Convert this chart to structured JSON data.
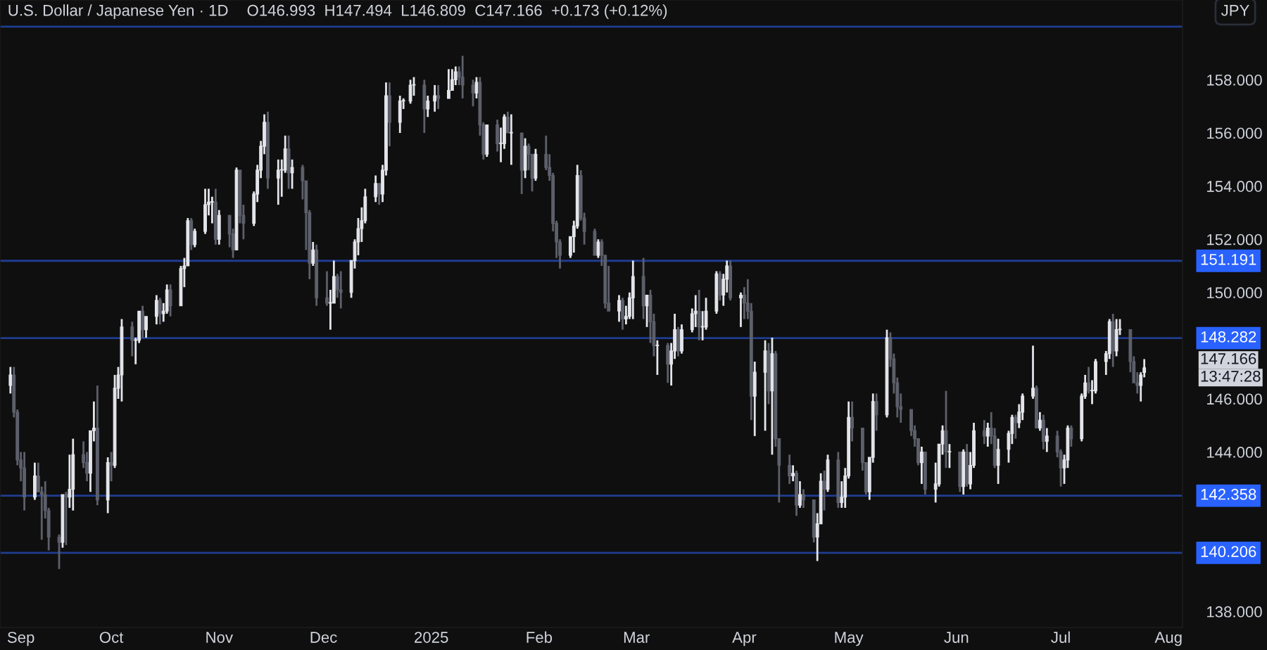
{
  "chart_data": {
    "type": "candlestick",
    "title": "U.S. Dollar / Japanese Yen · 1D",
    "subtitle": "O146.993  H147.494  L146.809  C147.166  +0.173 (+0.12%)",
    "x": [
      "2024-09-02",
      "2024-09-03",
      "2024-09-04",
      "2024-09-05",
      "2024-09-06",
      "2024-09-09",
      "2024-09-10",
      "2024-09-11",
      "2024-09-12",
      "2024-09-13",
      "2024-09-16",
      "2024-09-17",
      "2024-09-18",
      "2024-09-19",
      "2024-09-20",
      "2024-09-23",
      "2024-09-24",
      "2024-09-25",
      "2024-09-26",
      "2024-09-27",
      "2024-09-30",
      "2024-10-01",
      "2024-10-02",
      "2024-10-03",
      "2024-10-04",
      "2024-10-07",
      "2024-10-08",
      "2024-10-09",
      "2024-10-10",
      "2024-10-11",
      "2024-10-14",
      "2024-10-15",
      "2024-10-16",
      "2024-10-17",
      "2024-10-18",
      "2024-10-21",
      "2024-10-22",
      "2024-10-23",
      "2024-10-24",
      "2024-10-25",
      "2024-10-28",
      "2024-10-29",
      "2024-10-30",
      "2024-10-31",
      "2024-11-01",
      "2024-11-04",
      "2024-11-05",
      "2024-11-06",
      "2024-11-07",
      "2024-11-08",
      "2024-11-11",
      "2024-11-12",
      "2024-11-13",
      "2024-11-14",
      "2024-11-15",
      "2024-11-18",
      "2024-11-19",
      "2024-11-20",
      "2024-11-21",
      "2024-11-22",
      "2024-11-25",
      "2024-11-26",
      "2024-11-27",
      "2024-11-28",
      "2024-11-29",
      "2024-12-02",
      "2024-12-03",
      "2024-12-04",
      "2024-12-05",
      "2024-12-06",
      "2024-12-09",
      "2024-12-10",
      "2024-12-11",
      "2024-12-12",
      "2024-12-13",
      "2024-12-16",
      "2024-12-17",
      "2024-12-18",
      "2024-12-19",
      "2024-12-20",
      "2024-12-23",
      "2024-12-24",
      "2024-12-26",
      "2024-12-27",
      "2024-12-30",
      "2024-12-31",
      "2025-01-02",
      "2025-01-03",
      "2025-01-06",
      "2025-01-07",
      "2025-01-08",
      "2025-01-09",
      "2025-01-10",
      "2025-01-13",
      "2025-01-14",
      "2025-01-15",
      "2025-01-16",
      "2025-01-17",
      "2025-01-20",
      "2025-01-21",
      "2025-01-22",
      "2025-01-23",
      "2025-01-24",
      "2025-01-27",
      "2025-01-28",
      "2025-01-29",
      "2025-01-30",
      "2025-01-31",
      "2025-02-03",
      "2025-02-04",
      "2025-02-05",
      "2025-02-06",
      "2025-02-07",
      "2025-02-10",
      "2025-02-11",
      "2025-02-12",
      "2025-02-13",
      "2025-02-14",
      "2025-02-17",
      "2025-02-18",
      "2025-02-19",
      "2025-02-20",
      "2025-02-21",
      "2025-02-24",
      "2025-02-25",
      "2025-02-26",
      "2025-02-27",
      "2025-02-28",
      "2025-03-03",
      "2025-03-04",
      "2025-03-05",
      "2025-03-06",
      "2025-03-07",
      "2025-03-10",
      "2025-03-11",
      "2025-03-12",
      "2025-03-13",
      "2025-03-14",
      "2025-03-17",
      "2025-03-18",
      "2025-03-19",
      "2025-03-20",
      "2025-03-21",
      "2025-03-24",
      "2025-03-25",
      "2025-03-26",
      "2025-03-27",
      "2025-03-28",
      "2025-03-31",
      "2025-04-01",
      "2025-04-02",
      "2025-04-03",
      "2025-04-04",
      "2025-04-07",
      "2025-04-08",
      "2025-04-09",
      "2025-04-10",
      "2025-04-11",
      "2025-04-14",
      "2025-04-15",
      "2025-04-16",
      "2025-04-17",
      "2025-04-18",
      "2025-04-21",
      "2025-04-22",
      "2025-04-23",
      "2025-04-24",
      "2025-04-25",
      "2025-04-28",
      "2025-04-29",
      "2025-04-30",
      "2025-05-01",
      "2025-05-02",
      "2025-05-05",
      "2025-05-06",
      "2025-05-07",
      "2025-05-08",
      "2025-05-09",
      "2025-05-12",
      "2025-05-13",
      "2025-05-14",
      "2025-05-15",
      "2025-05-16",
      "2025-05-19",
      "2025-05-20",
      "2025-05-21",
      "2025-05-22",
      "2025-05-23",
      "2025-05-26",
      "2025-05-27",
      "2025-05-28",
      "2025-05-29",
      "2025-05-30",
      "2025-06-02",
      "2025-06-03",
      "2025-06-04",
      "2025-06-05",
      "2025-06-06",
      "2025-06-09",
      "2025-06-10",
      "2025-06-11",
      "2025-06-12",
      "2025-06-13",
      "2025-06-16",
      "2025-06-17",
      "2025-06-18",
      "2025-06-19",
      "2025-06-20",
      "2025-06-23",
      "2025-06-24",
      "2025-06-25",
      "2025-06-26",
      "2025-06-27",
      "2025-06-30",
      "2025-07-01",
      "2025-07-02",
      "2025-07-03",
      "2025-07-04",
      "2025-07-07",
      "2025-07-08",
      "2025-07-09",
      "2025-07-10",
      "2025-07-11",
      "2025-07-14",
      "2025-07-15",
      "2025-07-16",
      "2025-07-17",
      "2025-07-18",
      "2025-07-21",
      "2025-07-22",
      "2025-07-23",
      "2025-07-24",
      "2025-07-25"
    ],
    "ohlc": [
      [
        146.5,
        147.2,
        146.2,
        146.9
      ],
      [
        146.9,
        147.2,
        145.3,
        145.5
      ],
      [
        145.5,
        145.6,
        143.5,
        143.7
      ],
      [
        143.7,
        144.0,
        142.9,
        143.4
      ],
      [
        143.4,
        144.0,
        141.8,
        142.3
      ],
      [
        142.3,
        143.6,
        142.2,
        143.1
      ],
      [
        143.1,
        143.6,
        142.5,
        142.5
      ],
      [
        142.5,
        142.7,
        140.7,
        142.4
      ],
      [
        142.4,
        142.9,
        141.5,
        141.8
      ],
      [
        141.8,
        141.9,
        140.3,
        140.8
      ],
      [
        140.8,
        140.9,
        139.6,
        140.6
      ],
      [
        140.6,
        142.4,
        140.4,
        142.4
      ],
      [
        142.4,
        142.5,
        140.5,
        142.3
      ],
      [
        142.3,
        143.9,
        141.9,
        142.6
      ],
      [
        142.6,
        144.5,
        141.8,
        143.9
      ],
      [
        143.9,
        144.4,
        143.4,
        143.6
      ],
      [
        143.6,
        144.0,
        142.9,
        143.2
      ],
      [
        143.2,
        144.8,
        142.5,
        144.8
      ],
      [
        144.8,
        145.9,
        144.4,
        144.9
      ],
      [
        144.9,
        146.5,
        142.0,
        142.2
      ],
      [
        142.2,
        143.8,
        141.7,
        143.6
      ],
      [
        143.6,
        144.0,
        142.9,
        143.5
      ],
      [
        143.5,
        146.9,
        143.4,
        146.4
      ],
      [
        146.4,
        147.2,
        146.0,
        146.9
      ],
      [
        146.9,
        149.0,
        145.9,
        148.7
      ],
      [
        148.7,
        148.9,
        147.6,
        148.2
      ],
      [
        148.2,
        148.3,
        147.3,
        148.2
      ],
      [
        148.2,
        149.3,
        148.1,
        149.3
      ],
      [
        149.3,
        149.5,
        148.3,
        148.6
      ],
      [
        148.6,
        149.1,
        148.3,
        149.1
      ],
      [
        149.1,
        149.9,
        148.8,
        149.7
      ],
      [
        149.7,
        149.8,
        148.8,
        149.2
      ],
      [
        149.2,
        149.6,
        148.9,
        149.3
      ],
      [
        149.3,
        150.3,
        149.2,
        150.1
      ],
      [
        150.1,
        150.3,
        149.1,
        149.5
      ],
      [
        149.5,
        151.0,
        149.5,
        150.9
      ],
      [
        150.9,
        151.3,
        150.2,
        151.0
      ],
      [
        151.0,
        152.8,
        151.0,
        152.7
      ],
      [
        152.7,
        152.8,
        151.6,
        151.8
      ],
      [
        151.8,
        152.4,
        151.7,
        152.3
      ],
      [
        152.3,
        153.9,
        152.2,
        153.3
      ],
      [
        153.3,
        153.9,
        152.9,
        153.4
      ],
      [
        153.4,
        153.6,
        152.6,
        153.4
      ],
      [
        153.4,
        153.9,
        151.8,
        152.0
      ],
      [
        152.0,
        153.1,
        151.8,
        152.9
      ],
      [
        152.9,
        152.9,
        151.7,
        152.2
      ],
      [
        152.2,
        152.4,
        151.3,
        151.6
      ],
      [
        151.6,
        154.7,
        151.6,
        154.6
      ],
      [
        154.6,
        154.6,
        152.6,
        152.9
      ],
      [
        152.9,
        153.3,
        152.0,
        152.6
      ],
      [
        152.6,
        153.8,
        152.5,
        153.7
      ],
      [
        153.7,
        154.8,
        153.4,
        154.6
      ],
      [
        154.6,
        155.7,
        154.3,
        155.5
      ],
      [
        155.5,
        156.7,
        155.2,
        156.4
      ],
      [
        156.4,
        156.8,
        153.9,
        154.3
      ],
      [
        154.3,
        155.0,
        153.3,
        154.6
      ],
      [
        154.6,
        155.0,
        153.6,
        154.6
      ],
      [
        154.6,
        155.9,
        154.5,
        155.4
      ],
      [
        155.4,
        155.9,
        153.9,
        154.5
      ],
      [
        154.5,
        155.0,
        153.9,
        154.7
      ],
      [
        154.7,
        154.8,
        153.5,
        154.2
      ],
      [
        154.2,
        154.2,
        151.6,
        153.0
      ],
      [
        153.0,
        153.1,
        150.5,
        151.1
      ],
      [
        151.1,
        151.9,
        151.0,
        151.6
      ],
      [
        151.6,
        151.8,
        149.5,
        149.8
      ],
      [
        149.8,
        150.8,
        149.5,
        149.6
      ],
      [
        149.6,
        150.1,
        148.6,
        149.6
      ],
      [
        149.6,
        151.2,
        149.6,
        150.6
      ],
      [
        150.6,
        150.7,
        149.8,
        150.1
      ],
      [
        150.1,
        150.8,
        149.4,
        150.0
      ],
      [
        150.0,
        151.2,
        149.8,
        151.2
      ],
      [
        151.2,
        152.0,
        150.9,
        151.9
      ],
      [
        151.9,
        152.8,
        151.4,
        152.4
      ],
      [
        152.4,
        153.2,
        151.9,
        152.7
      ],
      [
        152.7,
        153.9,
        152.6,
        153.6
      ],
      [
        153.6,
        154.4,
        153.4,
        154.1
      ],
      [
        154.1,
        154.1,
        153.3,
        153.7
      ],
      [
        153.7,
        154.8,
        153.4,
        154.6
      ],
      [
        154.6,
        157.9,
        154.4,
        157.4
      ],
      [
        157.4,
        157.9,
        155.5,
        156.4
      ],
      [
        156.4,
        157.4,
        156.0,
        157.2
      ],
      [
        157.2,
        157.3,
        156.9,
        157.2
      ],
      [
        157.2,
        158.0,
        157.1,
        157.8
      ],
      [
        157.8,
        158.1,
        157.4,
        157.8
      ],
      [
        157.8,
        158.0,
        156.0,
        156.9
      ],
      [
        156.9,
        157.4,
        156.6,
        157.2
      ],
      [
        157.2,
        157.8,
        156.8,
        157.4
      ],
      [
        157.4,
        157.8,
        156.9,
        157.3
      ],
      [
        157.3,
        158.4,
        157.3,
        157.6
      ],
      [
        157.6,
        158.4,
        157.6,
        158.0
      ],
      [
        158.0,
        158.5,
        157.8,
        158.3
      ],
      [
        158.3,
        158.5,
        157.8,
        158.1
      ],
      [
        158.1,
        158.9,
        157.3,
        157.8
      ],
      [
        157.8,
        158.0,
        157.0,
        157.5
      ],
      [
        157.5,
        158.1,
        157.3,
        157.9
      ],
      [
        157.9,
        158.1,
        155.9,
        156.3
      ],
      [
        156.3,
        156.4,
        155.0,
        155.2
      ],
      [
        155.2,
        156.3,
        155.1,
        156.3
      ],
      [
        156.3,
        156.5,
        155.3,
        155.6
      ],
      [
        155.6,
        156.2,
        154.9,
        155.6
      ],
      [
        155.6,
        156.7,
        155.4,
        156.6
      ],
      [
        156.6,
        156.8,
        156.0,
        156.0
      ],
      [
        156.0,
        156.7,
        154.8,
        156.0
      ],
      [
        156.0,
        156.0,
        153.7,
        154.6
      ],
      [
        154.6,
        155.8,
        154.3,
        155.5
      ],
      [
        155.5,
        155.6,
        154.6,
        155.2
      ],
      [
        155.2,
        155.2,
        153.8,
        154.3
      ],
      [
        154.3,
        155.4,
        154.2,
        155.2
      ],
      [
        155.2,
        155.9,
        154.6,
        154.7
      ],
      [
        154.7,
        155.2,
        154.2,
        154.4
      ],
      [
        154.4,
        154.5,
        152.3,
        152.6
      ],
      [
        152.6,
        152.7,
        151.3,
        151.9
      ],
      [
        151.9,
        152.0,
        150.9,
        151.4
      ],
      [
        151.4,
        152.1,
        151.3,
        152.1
      ],
      [
        152.1,
        152.7,
        151.5,
        152.5
      ],
      [
        152.5,
        154.8,
        152.4,
        154.4
      ],
      [
        154.4,
        154.6,
        152.7,
        152.8
      ],
      [
        152.8,
        153.0,
        151.8,
        152.3
      ],
      [
        152.3,
        152.4,
        151.4,
        151.4
      ],
      [
        151.4,
        152.0,
        151.3,
        151.9
      ],
      [
        151.9,
        152.0,
        151.0,
        151.4
      ],
      [
        151.4,
        151.4,
        149.4,
        149.6
      ],
      [
        149.6,
        151.0,
        149.3,
        149.3
      ],
      [
        149.3,
        149.9,
        148.9,
        149.7
      ],
      [
        149.7,
        149.8,
        148.6,
        149.0
      ],
      [
        149.0,
        149.5,
        148.8,
        149.1
      ],
      [
        149.1,
        150.0,
        149.0,
        149.8
      ],
      [
        149.8,
        151.2,
        149.0,
        150.6
      ],
      [
        150.6,
        151.3,
        149.0,
        149.5
      ],
      [
        149.5,
        149.9,
        148.7,
        149.9
      ],
      [
        149.9,
        150.1,
        148.1,
        148.9
      ],
      [
        148.9,
        149.2,
        147.6,
        148.0
      ],
      [
        148.0,
        148.2,
        146.9,
        148.0
      ],
      [
        148.0,
        148.1,
        146.6,
        147.3
      ],
      [
        147.3,
        148.1,
        146.5,
        147.8
      ],
      [
        147.8,
        149.2,
        147.5,
        148.6
      ],
      [
        148.6,
        148.7,
        147.6,
        147.8
      ],
      [
        147.8,
        148.8,
        147.7,
        148.6
      ],
      [
        148.6,
        149.4,
        148.5,
        149.2
      ],
      [
        149.2,
        149.9,
        148.7,
        149.3
      ],
      [
        149.3,
        150.1,
        148.2,
        148.7
      ],
      [
        148.7,
        149.3,
        148.2,
        148.7
      ],
      [
        148.7,
        149.8,
        148.6,
        149.3
      ],
      [
        149.3,
        150.8,
        149.2,
        150.7
      ],
      [
        150.7,
        150.8,
        149.7,
        149.9
      ],
      [
        149.9,
        150.7,
        149.5,
        150.5
      ],
      [
        150.5,
        151.2,
        150.0,
        151.0
      ],
      [
        151.0,
        151.2,
        149.7,
        149.8
      ],
      [
        149.8,
        150.0,
        148.7,
        149.9
      ],
      [
        149.9,
        150.2,
        149.0,
        149.6
      ],
      [
        149.6,
        150.5,
        149.0,
        149.3
      ],
      [
        149.3,
        149.6,
        145.2,
        146.1
      ],
      [
        146.1,
        147.4,
        144.6,
        147.0
      ],
      [
        147.0,
        148.2,
        144.8,
        147.8
      ],
      [
        147.8,
        148.1,
        145.8,
        146.3
      ],
      [
        146.3,
        148.3,
        143.9,
        147.7
      ],
      [
        147.7,
        147.8,
        144.2,
        144.5
      ],
      [
        144.5,
        144.5,
        142.1,
        143.5
      ],
      [
        143.5,
        143.9,
        142.8,
        143.1
      ],
      [
        143.1,
        143.5,
        142.9,
        143.2
      ],
      [
        143.2,
        143.3,
        141.6,
        142.0
      ],
      [
        142.0,
        142.9,
        141.9,
        142.4
      ],
      [
        142.4,
        142.6,
        141.9,
        142.2
      ],
      [
        142.2,
        142.2,
        140.6,
        140.8
      ],
      [
        140.8,
        141.7,
        139.9,
        141.3
      ],
      [
        141.3,
        143.2,
        141.3,
        142.9
      ],
      [
        142.9,
        143.3,
        141.8,
        142.6
      ],
      [
        142.6,
        143.9,
        142.5,
        143.7
      ],
      [
        143.7,
        144.0,
        141.9,
        142.1
      ],
      [
        142.1,
        142.9,
        141.9,
        142.3
      ],
      [
        142.3,
        143.4,
        141.9,
        143.1
      ],
      [
        143.1,
        145.9,
        143.0,
        145.3
      ],
      [
        145.3,
        145.9,
        144.4,
        144.9
      ],
      [
        144.9,
        144.9,
        143.3,
        143.6
      ],
      [
        143.6,
        143.6,
        142.4,
        142.5
      ],
      [
        142.5,
        143.8,
        142.2,
        143.8
      ],
      [
        143.8,
        146.2,
        143.6,
        145.9
      ],
      [
        145.9,
        146.2,
        144.8,
        145.4
      ],
      [
        145.4,
        148.6,
        145.3,
        148.3
      ],
      [
        148.3,
        148.5,
        147.2,
        147.5
      ],
      [
        147.5,
        147.7,
        146.2,
        146.6
      ],
      [
        146.6,
        146.8,
        145.3,
        145.7
      ],
      [
        145.7,
        146.2,
        145.1,
        145.6
      ],
      [
        145.6,
        145.6,
        144.6,
        144.8
      ],
      [
        144.8,
        145.0,
        144.2,
        144.5
      ],
      [
        144.5,
        144.5,
        143.5,
        143.6
      ],
      [
        143.6,
        144.2,
        142.8,
        144.0
      ],
      [
        144.0,
        144.0,
        142.4,
        142.6
      ],
      [
        142.6,
        143.6,
        142.1,
        142.8
      ],
      [
        142.8,
        144.3,
        142.7,
        144.3
      ],
      [
        144.3,
        145.0,
        143.9,
        144.8
      ],
      [
        144.8,
        146.3,
        143.4,
        144.0
      ],
      [
        144.0,
        144.3,
        143.4,
        144.0
      ],
      [
        144.0,
        144.0,
        142.5,
        142.7
      ],
      [
        142.7,
        144.1,
        142.4,
        144.0
      ],
      [
        144.0,
        144.3,
        142.7,
        142.8
      ],
      [
        142.8,
        144.0,
        142.6,
        143.5
      ],
      [
        143.5,
        145.1,
        143.4,
        144.8
      ],
      [
        144.8,
        145.2,
        144.3,
        144.6
      ],
      [
        144.6,
        145.1,
        144.2,
        144.9
      ],
      [
        144.9,
        145.5,
        144.3,
        144.6
      ],
      [
        144.6,
        144.9,
        143.4,
        143.5
      ],
      [
        143.5,
        144.5,
        142.8,
        144.1
      ],
      [
        144.1,
        144.8,
        143.6,
        144.7
      ],
      [
        144.7,
        145.4,
        144.3,
        145.3
      ],
      [
        145.3,
        145.4,
        144.5,
        145.1
      ],
      [
        145.1,
        145.8,
        144.9,
        145.5
      ],
      [
        145.5,
        146.2,
        145.2,
        146.1
      ],
      [
        146.1,
        148.0,
        146.0,
        146.4
      ],
      [
        146.4,
        146.5,
        144.9,
        144.9
      ],
      [
        144.9,
        145.5,
        144.8,
        145.2
      ],
      [
        145.2,
        145.4,
        144.1,
        144.4
      ],
      [
        144.4,
        144.9,
        144.0,
        144.6
      ],
      [
        144.6,
        144.8,
        143.8,
        144.0
      ],
      [
        144.0,
        144.1,
        142.7,
        143.4
      ],
      [
        143.4,
        143.9,
        142.8,
        143.7
      ],
      [
        143.7,
        145.0,
        143.4,
        144.9
      ],
      [
        144.9,
        145.0,
        144.2,
        144.5
      ],
      [
        144.5,
        146.2,
        144.4,
        146.1
      ],
      [
        146.1,
        146.9,
        146.0,
        146.6
      ],
      [
        146.6,
        147.2,
        146.2,
        146.3
      ],
      [
        146.3,
        146.7,
        145.8,
        146.3
      ],
      [
        146.3,
        147.5,
        146.2,
        147.4
      ],
      [
        147.4,
        147.8,
        146.9,
        147.7
      ],
      [
        147.7,
        149.0,
        147.5,
        148.9
      ],
      [
        148.9,
        149.2,
        147.2,
        147.8
      ],
      [
        147.8,
        149.0,
        147.6,
        148.6
      ],
      [
        148.6,
        149.0,
        148.4,
        148.6
      ],
      [
        148.6,
        148.6,
        147.0,
        147.4
      ],
      [
        147.4,
        147.6,
        146.6,
        146.6
      ],
      [
        146.6,
        147.0,
        146.2,
        146.5
      ],
      [
        146.5,
        147.0,
        145.9,
        146.9
      ],
      [
        146.993,
        147.494,
        146.809,
        147.166
      ]
    ],
    "xlim": [
      "2024-08-30",
      "2025-08-05"
    ],
    "xticks": [
      {
        "value": "2024-09-01",
        "label": "Sep"
      },
      {
        "value": "2024-10-01",
        "label": "Oct"
      },
      {
        "value": "2024-11-01",
        "label": "Nov"
      },
      {
        "value": "2024-12-01",
        "label": "Dec"
      },
      {
        "value": "2025-01-01",
        "label": "2025"
      },
      {
        "value": "2025-02-01",
        "label": "Feb"
      },
      {
        "value": "2025-03-01",
        "label": "Mar"
      },
      {
        "value": "2025-04-01",
        "label": "Apr"
      },
      {
        "value": "2025-05-01",
        "label": "May"
      },
      {
        "value": "2025-06-01",
        "label": "Jun"
      },
      {
        "value": "2025-07-01",
        "label": "Jul"
      },
      {
        "value": "2025-08-01",
        "label": "Aug"
      }
    ],
    "ylim": [
      137.4,
      161.0
    ],
    "yticks": [
      {
        "value": 138,
        "label": "138.000"
      },
      {
        "value": 144,
        "label": "144.000"
      },
      {
        "value": 146,
        "label": "146.000"
      },
      {
        "value": 150,
        "label": "150.000"
      },
      {
        "value": 152,
        "label": "152.000"
      },
      {
        "value": 154,
        "label": "154.000"
      },
      {
        "value": 156,
        "label": "156.000"
      },
      {
        "value": 158,
        "label": "158.000"
      }
    ],
    "ref_lines": [
      {
        "axis": "y",
        "value": 160,
        "color": "#1f3d91"
      },
      {
        "axis": "y",
        "value": 151.191,
        "label": "151.191",
        "color": "#1f3d91"
      },
      {
        "axis": "y",
        "value": 148.282,
        "label": "148.282",
        "color": "#1f3d91"
      },
      {
        "axis": "y",
        "value": 142.358,
        "label": "142.358",
        "color": "#1f3d91"
      },
      {
        "axis": "y",
        "value": 140.206,
        "label": "140.206",
        "color": "#1f3d91"
      }
    ],
    "annotations": [
      "147.166",
      "13:47:28",
      "JPY"
    ],
    "grid": false
  }
}
